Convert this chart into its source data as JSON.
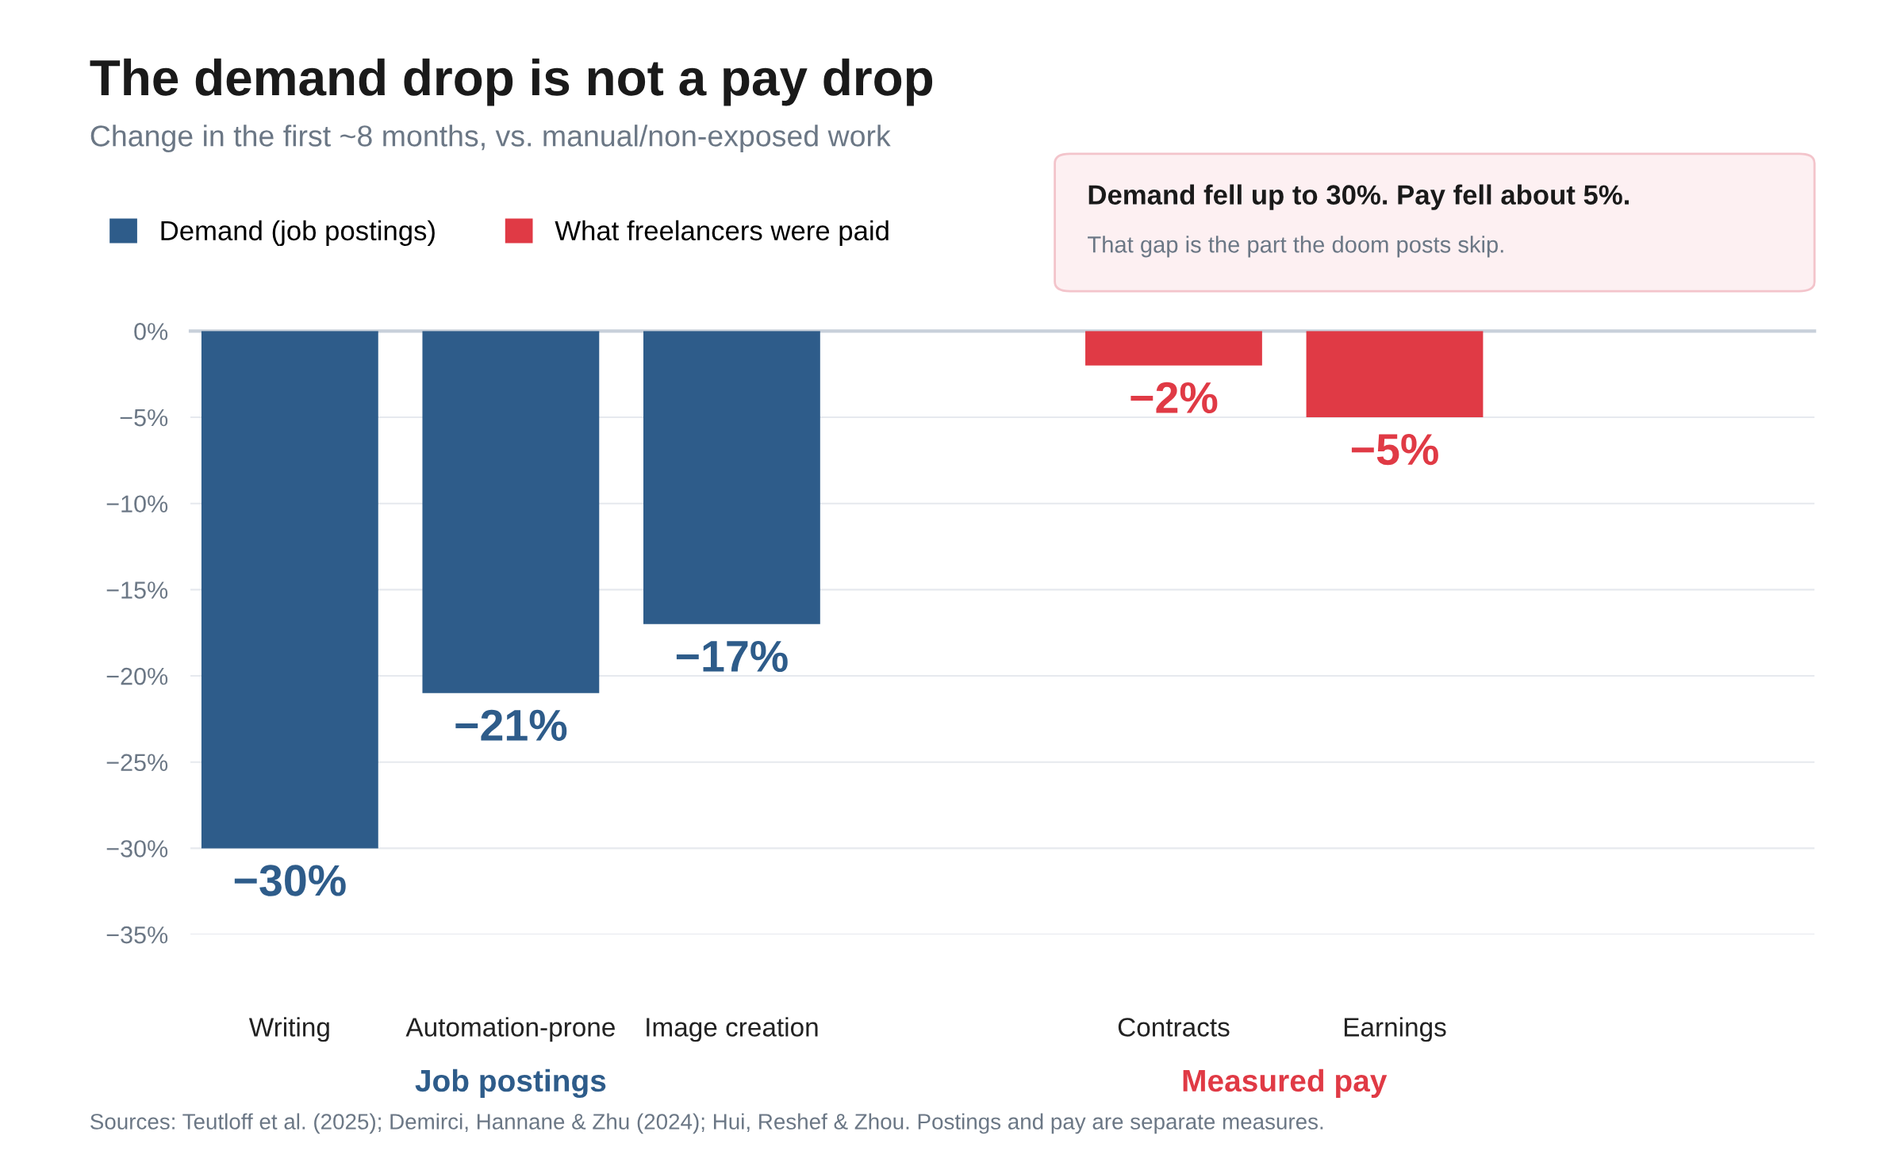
{
  "chart_data": {
    "type": "bar",
    "title": "The demand drop is not a pay drop",
    "subtitle": "Change in the first ~8 months, vs. manual/non-exposed work",
    "categories": [
      "Writing",
      "Automation-prone",
      "Image creation",
      null,
      "Contracts",
      "Earnings"
    ],
    "series": [
      {
        "name": "Demand (job postings)",
        "color": "#2e5c8a",
        "values": [
          -30,
          -21,
          -17,
          null,
          null,
          null
        ],
        "value_labels": [
          "−30%",
          "−21%",
          "−17%",
          null,
          null,
          null
        ]
      },
      {
        "name": "What freelancers were paid",
        "color": "#e03a45",
        "values": [
          null,
          null,
          null,
          null,
          -2,
          -5
        ],
        "value_labels": [
          null,
          null,
          null,
          null,
          "−2%",
          "−5%"
        ]
      }
    ],
    "ylim": [
      -35,
      0
    ],
    "yticks": [
      {
        "value": 0,
        "label": "0%"
      },
      {
        "value": -5,
        "label": "−5%"
      },
      {
        "value": -10,
        "label": "−10%"
      },
      {
        "value": -15,
        "label": "−15%"
      },
      {
        "value": -20,
        "label": "−20%"
      },
      {
        "value": -25,
        "label": "−25%"
      },
      {
        "value": -30,
        "label": "−30%"
      },
      {
        "value": -35,
        "label": "−35%"
      }
    ],
    "grid": "y",
    "legend": "top left",
    "annotations": [
      "Demand fell up to 30%. Pay fell about 5%.",
      "That gap is the part the doom posts skip.",
      "Job postings",
      "Measured pay",
      "Sources: Teutloff et al. (2025); Demirci, Hannane & Zhu (2024); Hui, Reshef & Zhou. Postings and pay are separate measures."
    ]
  }
}
